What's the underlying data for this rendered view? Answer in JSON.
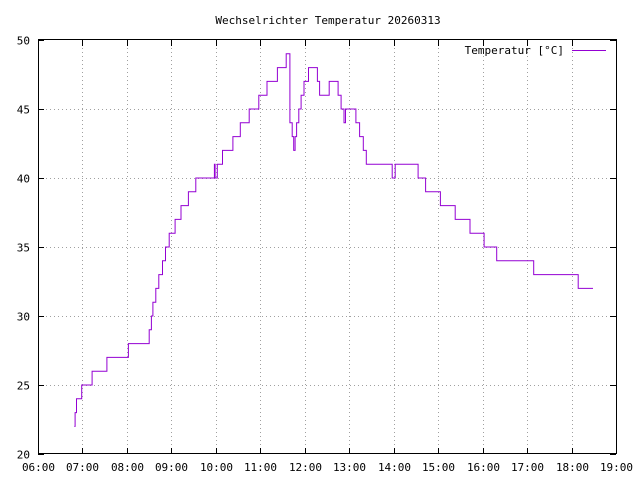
{
  "chart_data": {
    "type": "line",
    "title": "Wechselrichter Temperatur 20260313",
    "xlabel": "",
    "ylabel": "",
    "xlim": [
      "06:00",
      "19:00"
    ],
    "ylim": [
      20,
      50
    ],
    "x_ticks": [
      "06:00",
      "07:00",
      "08:00",
      "09:00",
      "10:00",
      "11:00",
      "12:00",
      "13:00",
      "14:00",
      "15:00",
      "16:00",
      "17:00",
      "18:00",
      "19:00"
    ],
    "y_ticks": [
      20,
      25,
      30,
      35,
      40,
      45,
      50
    ],
    "grid": true,
    "legend_position": "top-right",
    "series": [
      {
        "name": "Temperatur [°C]",
        "color": "#9400d3",
        "step": true,
        "points": [
          [
            "06:49",
            22
          ],
          [
            "06:50",
            23
          ],
          [
            "06:52",
            24
          ],
          [
            "06:59",
            25
          ],
          [
            "07:13",
            26
          ],
          [
            "07:33",
            27
          ],
          [
            "08:02",
            28
          ],
          [
            "08:30",
            29
          ],
          [
            "08:33",
            30
          ],
          [
            "08:35",
            31
          ],
          [
            "08:39",
            32
          ],
          [
            "08:43",
            33
          ],
          [
            "08:48",
            34
          ],
          [
            "08:52",
            35
          ],
          [
            "08:57",
            36
          ],
          [
            "09:05",
            37
          ],
          [
            "09:13",
            38
          ],
          [
            "09:23",
            39
          ],
          [
            "09:33",
            40
          ],
          [
            "09:58",
            41
          ],
          [
            "09:59",
            40
          ],
          [
            "10:02",
            41
          ],
          [
            "10:09",
            42
          ],
          [
            "10:23",
            43
          ],
          [
            "10:33",
            44
          ],
          [
            "10:45",
            45
          ],
          [
            "10:58",
            46
          ],
          [
            "11:09",
            47
          ],
          [
            "11:23",
            48
          ],
          [
            "11:35",
            49
          ],
          [
            "11:40",
            44
          ],
          [
            "11:43",
            43
          ],
          [
            "11:45",
            42
          ],
          [
            "11:47",
            43
          ],
          [
            "11:49",
            44
          ],
          [
            "11:52",
            45
          ],
          [
            "11:55",
            46
          ],
          [
            "11:59",
            47
          ],
          [
            "12:05",
            48
          ],
          [
            "12:17",
            47
          ],
          [
            "12:20",
            46
          ],
          [
            "12:33",
            47
          ],
          [
            "12:45",
            46
          ],
          [
            "12:49",
            45
          ],
          [
            "12:53",
            44
          ],
          [
            "12:55",
            45
          ],
          [
            "13:09",
            44
          ],
          [
            "13:14",
            43
          ],
          [
            "13:19",
            42
          ],
          [
            "13:23",
            41
          ],
          [
            "13:58",
            40
          ],
          [
            "14:02",
            41
          ],
          [
            "14:33",
            40
          ],
          [
            "14:43",
            39
          ],
          [
            "15:03",
            38
          ],
          [
            "15:23",
            37
          ],
          [
            "15:43",
            36
          ],
          [
            "16:02",
            35
          ],
          [
            "16:19",
            34
          ],
          [
            "17:09",
            33
          ],
          [
            "18:09",
            32
          ],
          [
            "18:29",
            32
          ]
        ]
      }
    ]
  }
}
